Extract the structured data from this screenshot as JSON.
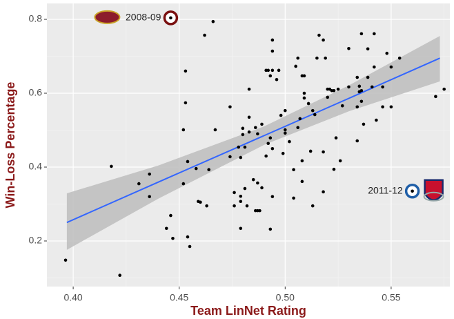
{
  "chart_data": {
    "type": "scatter",
    "xlabel": "Team LinNet Rating",
    "ylabel": "Win-Loss Percentage",
    "xlim": [
      0.3876,
      0.5777
    ],
    "ylim": [
      0.0766,
      0.843
    ],
    "xticks": [
      {
        "value": 0.4,
        "label": "0.40"
      },
      {
        "value": 0.45,
        "label": "0.45"
      },
      {
        "value": 0.5,
        "label": "0.50"
      },
      {
        "value": 0.55,
        "label": "0.55"
      }
    ],
    "yticks": [
      0.2,
      0.4,
      0.6,
      0.8
    ],
    "grid": true,
    "series": [
      {
        "color": "#000000",
        "x": [
          0.3964,
          0.418,
          0.422,
          0.431,
          0.436,
          0.436,
          0.444,
          0.446,
          0.447,
          0.446,
          0.452,
          0.453,
          0.452,
          0.453,
          0.454,
          0.454,
          0.455,
          0.458,
          0.459,
          0.46,
          0.462,
          0.463,
          0.464,
          0.466,
          0.467,
          0.474,
          0.474,
          0.476,
          0.476,
          0.478,
          0.479,
          0.479,
          0.479,
          0.479,
          0.48,
          0.48,
          0.481,
          0.481,
          0.482,
          0.483,
          0.483,
          0.483,
          0.485,
          0.486,
          0.486,
          0.487,
          0.487,
          0.487,
          0.488,
          0.489,
          0.489,
          0.491,
          0.491,
          0.492,
          0.492,
          0.493,
          0.493,
          0.493,
          0.494,
          0.494,
          0.494,
          0.494,
          0.494,
          0.496,
          0.497,
          0.498,
          0.499,
          0.5,
          0.5,
          0.5,
          0.502,
          0.504,
          0.504,
          0.505,
          0.506,
          0.506,
          0.507,
          0.508,
          0.508,
          0.508,
          0.509,
          0.509,
          0.509,
          0.511,
          0.512,
          0.513,
          0.513,
          0.514,
          0.515,
          0.516,
          0.518,
          0.518,
          0.518,
          0.519,
          0.52,
          0.52,
          0.521,
          0.522,
          0.523,
          0.523,
          0.524,
          0.525,
          0.526,
          0.527,
          0.53,
          0.53,
          0.534,
          0.534,
          0.534,
          0.535,
          0.535,
          0.536,
          0.536,
          0.536,
          0.537,
          0.539,
          0.539,
          0.541,
          0.542,
          0.542,
          0.543,
          0.546,
          0.546,
          0.548,
          0.55,
          0.55,
          0.554,
          0.56,
          0.571,
          0.575
        ],
        "values": [
          0.148,
          0.402,
          0.107,
          0.355,
          0.381,
          0.32,
          0.234,
          0.269,
          0.207,
          0.804,
          0.355,
          0.66,
          0.501,
          0.574,
          0.415,
          0.211,
          0.185,
          0.396,
          0.307,
          0.305,
          0.757,
          0.295,
          0.393,
          0.794,
          0.501,
          0.428,
          0.563,
          0.331,
          0.295,
          0.454,
          0.307,
          0.321,
          0.234,
          0.426,
          0.505,
          0.488,
          0.454,
          0.342,
          0.295,
          0.611,
          0.535,
          0.495,
          0.366,
          0.507,
          0.282,
          0.282,
          0.49,
          0.357,
          0.282,
          0.516,
          0.344,
          0.43,
          0.662,
          0.662,
          0.464,
          0.232,
          0.647,
          0.479,
          0.744,
          0.714,
          0.662,
          0.32,
          0.45,
          0.637,
          0.662,
          0.54,
          0.437,
          0.553,
          0.501,
          0.492,
          0.469,
          0.316,
          0.393,
          0.673,
          0.695,
          0.507,
          0.531,
          0.361,
          0.417,
          0.647,
          0.6,
          0.647,
          0.587,
          0.572,
          0.443,
          0.295,
          0.553,
          0.542,
          0.695,
          0.757,
          0.333,
          0.441,
          0.744,
          0.695,
          0.589,
          0.611,
          0.611,
          0.607,
          0.607,
          0.394,
          0.479,
          0.611,
          0.417,
          0.566,
          0.721,
          0.617,
          0.643,
          0.563,
          0.471,
          0.619,
          0.604,
          0.761,
          0.578,
          0.607,
          0.516,
          0.72,
          0.643,
          0.617,
          0.761,
          0.671,
          0.527,
          0.617,
          0.563,
          0.708,
          0.671,
          0.563,
          0.695,
          0.335,
          0.591,
          0.611
        ]
      }
    ],
    "fit": {
      "color": "#3366ff",
      "band_color": "#bdbdbd",
      "x": [
        0.397,
        0.44,
        0.49,
        0.53,
        0.573
      ],
      "y": [
        0.25,
        0.359,
        0.485,
        0.586,
        0.695
      ],
      "lower": [
        0.176,
        0.314,
        0.46,
        0.551,
        0.632
      ],
      "upper": [
        0.329,
        0.404,
        0.51,
        0.621,
        0.755
      ]
    },
    "annotations": [
      {
        "text": "2008-09",
        "x": 0.446,
        "y": 0.804,
        "color": "#7a1010"
      },
      {
        "text": "2011-12",
        "x": 0.56,
        "y": 0.335,
        "color": "#1f5fa8"
      }
    ]
  }
}
